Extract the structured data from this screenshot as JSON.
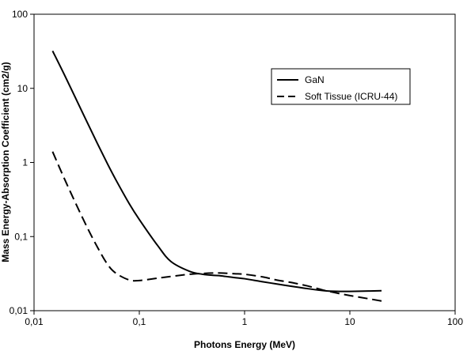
{
  "chart_data": {
    "type": "line",
    "xlabel": "Photons Energy (MeV)",
    "ylabel": "Mass Energy-Absorption Coefficient (cm2/g)",
    "x_scale": "log",
    "y_scale": "log",
    "xlim": [
      0.01,
      100
    ],
    "ylim": [
      0.01,
      100
    ],
    "x_ticks": [
      {
        "value": 0.01,
        "label": "0,01"
      },
      {
        "value": 0.1,
        "label": "0,1"
      },
      {
        "value": 1,
        "label": "1"
      },
      {
        "value": 10,
        "label": "10"
      },
      {
        "value": 100,
        "label": "100"
      }
    ],
    "y_ticks": [
      {
        "value": 0.01,
        "label": "0,01"
      },
      {
        "value": 0.1,
        "label": "0,1"
      },
      {
        "value": 1,
        "label": "1"
      },
      {
        "value": 10,
        "label": "10"
      },
      {
        "value": 100,
        "label": "100"
      }
    ],
    "grid": false,
    "legend_position": "top-right",
    "series": [
      {
        "name": "GaN",
        "style": "solid",
        "color": "#000000",
        "points": [
          [
            0.015,
            32
          ],
          [
            0.02,
            14
          ],
          [
            0.03,
            4.2
          ],
          [
            0.04,
            1.8
          ],
          [
            0.05,
            0.95
          ],
          [
            0.06,
            0.58
          ],
          [
            0.08,
            0.28
          ],
          [
            0.1,
            0.17
          ],
          [
            0.15,
            0.075
          ],
          [
            0.2,
            0.046
          ],
          [
            0.3,
            0.034
          ],
          [
            0.4,
            0.031
          ],
          [
            0.5,
            0.03
          ],
          [
            0.6,
            0.0295
          ],
          [
            0.8,
            0.028
          ],
          [
            1,
            0.027
          ],
          [
            1.5,
            0.0245
          ],
          [
            2,
            0.023
          ],
          [
            3,
            0.021
          ],
          [
            4,
            0.0198
          ],
          [
            5,
            0.019
          ],
          [
            6,
            0.0185
          ],
          [
            8,
            0.0182
          ],
          [
            10,
            0.0182
          ],
          [
            15,
            0.0184
          ],
          [
            20,
            0.0186
          ]
        ]
      },
      {
        "name": "Soft Tissue (ICRU-44)",
        "style": "dashed",
        "color": "#000000",
        "points": [
          [
            0.015,
            1.4
          ],
          [
            0.02,
            0.55
          ],
          [
            0.03,
            0.16
          ],
          [
            0.04,
            0.072
          ],
          [
            0.05,
            0.042
          ],
          [
            0.06,
            0.032
          ],
          [
            0.08,
            0.026
          ],
          [
            0.1,
            0.0255
          ],
          [
            0.15,
            0.0275
          ],
          [
            0.2,
            0.029
          ],
          [
            0.3,
            0.031
          ],
          [
            0.4,
            0.0318
          ],
          [
            0.5,
            0.0322
          ],
          [
            0.6,
            0.0322
          ],
          [
            0.8,
            0.0315
          ],
          [
            1,
            0.031
          ],
          [
            1.5,
            0.0285
          ],
          [
            2,
            0.026
          ],
          [
            3,
            0.0235
          ],
          [
            4,
            0.0215
          ],
          [
            5,
            0.0198
          ],
          [
            6,
            0.0185
          ],
          [
            8,
            0.017
          ],
          [
            10,
            0.016
          ],
          [
            15,
            0.0145
          ],
          [
            20,
            0.0135
          ]
        ]
      }
    ]
  }
}
